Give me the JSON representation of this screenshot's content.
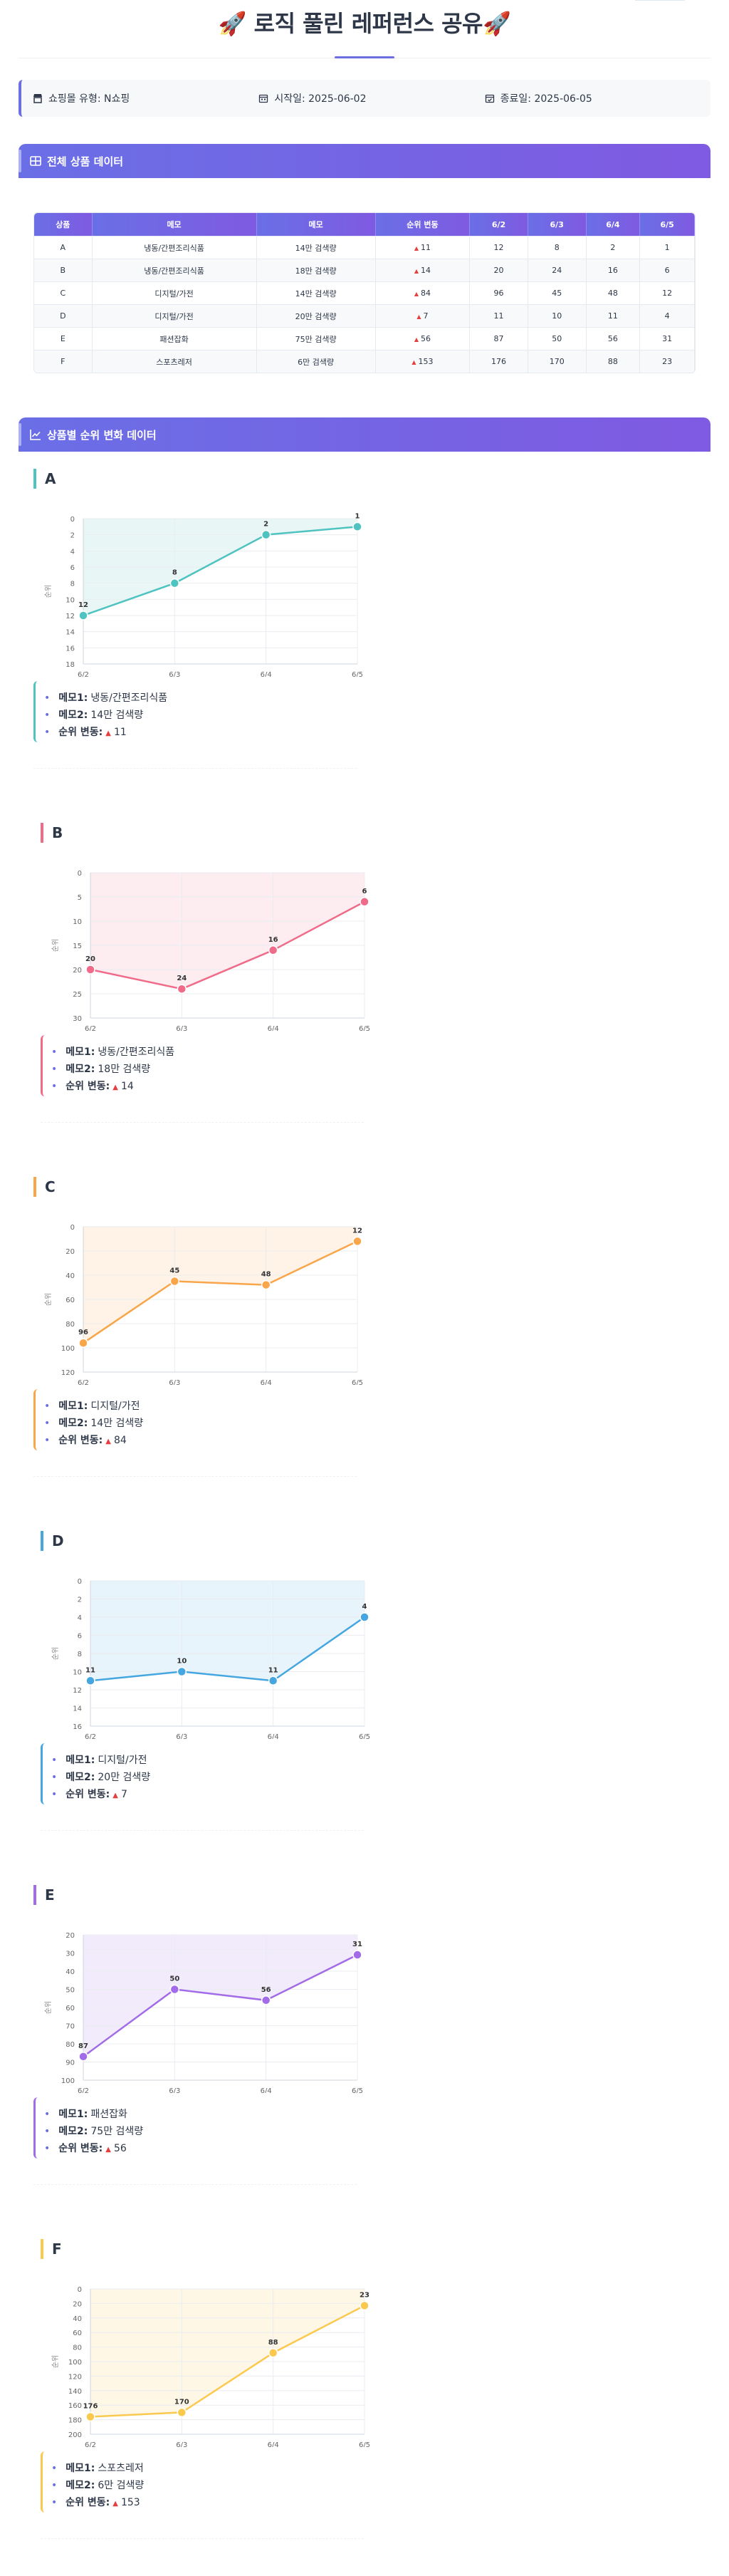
{
  "page_title": "🚀 로직 풀린 레퍼런스 공유🚀",
  "info": {
    "mall": "쇼핑몰 유형: N쇼핑",
    "start": "시작일: 2025-06-02",
    "end": "종료일: 2025-06-05"
  },
  "sections": {
    "table_title": "전체 상품 데이터",
    "charts_title": "상품별 순위 변화 데이터"
  },
  "table": {
    "headers": [
      "상품",
      "메모",
      "메모",
      "순위 변동",
      "6/2",
      "6/3",
      "6/4",
      "6/5"
    ],
    "rows": [
      {
        "product": "A",
        "memo1": "냉동/간편조리식품",
        "memo2": "14만 검색량",
        "change": "11",
        "r1": "12",
        "r2": "8",
        "r3": "2",
        "r4": "1"
      },
      {
        "product": "B",
        "memo1": "냉동/간편조리식품",
        "memo2": "18만 검색량",
        "change": "14",
        "r1": "20",
        "r2": "24",
        "r3": "16",
        "r4": "6"
      },
      {
        "product": "C",
        "memo1": "디지털/가전",
        "memo2": "14만 검색량",
        "change": "84",
        "r1": "96",
        "r2": "45",
        "r3": "48",
        "r4": "12"
      },
      {
        "product": "D",
        "memo1": "디지털/가전",
        "memo2": "20만 검색량",
        "change": "7",
        "r1": "11",
        "r2": "10",
        "r3": "11",
        "r4": "4"
      },
      {
        "product": "E",
        "memo1": "패션잡화",
        "memo2": "75만 검색량",
        "change": "56",
        "r1": "87",
        "r2": "50",
        "r3": "56",
        "r4": "31"
      },
      {
        "product": "F",
        "memo1": "스포츠레저",
        "memo2": "6만 검색량",
        "change": "153",
        "r1": "176",
        "r2": "170",
        "r3": "88",
        "r4": "23"
      }
    ]
  },
  "labels": {
    "memo1": "메모1:",
    "memo2": "메모2:",
    "change": "순위 변동:",
    "ylabel": "순위",
    "up_symbol": "▲"
  },
  "chart_data": [
    {
      "type": "line",
      "title": "A",
      "categories": [
        "6/2",
        "6/3",
        "6/4",
        "6/5"
      ],
      "values": [
        12,
        8,
        2,
        1
      ],
      "ylim": [
        0,
        18
      ],
      "yticks": [
        0,
        2,
        4,
        6,
        8,
        10,
        12,
        14,
        16,
        18
      ],
      "inverted_y": true,
      "ylabel": "순위",
      "color": "#4fc3c0",
      "fill": "#e8f7f6",
      "memo1": "냉동/간편조리식품",
      "memo2": "14만 검색량",
      "change": "11"
    },
    {
      "type": "line",
      "title": "B",
      "categories": [
        "6/2",
        "6/3",
        "6/4",
        "6/5"
      ],
      "values": [
        20,
        24,
        16,
        6
      ],
      "ylim": [
        0,
        30
      ],
      "yticks": [
        0,
        5,
        10,
        15,
        20,
        25,
        30
      ],
      "inverted_y": true,
      "ylabel": "순위",
      "color": "#f06b8a",
      "fill": "#fdecf0",
      "memo1": "냉동/간편조리식품",
      "memo2": "18만 검색량",
      "change": "14"
    },
    {
      "type": "line",
      "title": "C",
      "categories": [
        "6/2",
        "6/3",
        "6/4",
        "6/5"
      ],
      "values": [
        96,
        45,
        48,
        12
      ],
      "ylim": [
        0,
        120
      ],
      "yticks": [
        0,
        20,
        40,
        60,
        80,
        100,
        120
      ],
      "inverted_y": true,
      "ylabel": "순위",
      "color": "#f9a54a",
      "fill": "#fef3e6",
      "memo1": "디지털/가전",
      "memo2": "14만 검색량",
      "change": "84"
    },
    {
      "type": "line",
      "title": "D",
      "categories": [
        "6/2",
        "6/3",
        "6/4",
        "6/5"
      ],
      "values": [
        11,
        10,
        11,
        4
      ],
      "ylim": [
        0,
        16
      ],
      "yticks": [
        0,
        2,
        4,
        6,
        8,
        10,
        12,
        14,
        16
      ],
      "inverted_y": true,
      "ylabel": "순위",
      "color": "#45a6e0",
      "fill": "#e8f4fb",
      "memo1": "디지털/가전",
      "memo2": "20만 검색량",
      "change": "7"
    },
    {
      "type": "line",
      "title": "E",
      "categories": [
        "6/2",
        "6/3",
        "6/4",
        "6/5"
      ],
      "values": [
        87,
        50,
        56,
        31
      ],
      "ylim": [
        20,
        100
      ],
      "yticks": [
        20,
        30,
        40,
        50,
        60,
        70,
        80,
        90,
        100
      ],
      "inverted_y": true,
      "ylabel": "순위",
      "color": "#a26ce8",
      "fill": "#f2ebfc",
      "memo1": "패션잡화",
      "memo2": "75만 검색량",
      "change": "56"
    },
    {
      "type": "line",
      "title": "F",
      "categories": [
        "6/2",
        "6/3",
        "6/4",
        "6/5"
      ],
      "values": [
        176,
        170,
        88,
        23
      ],
      "ylim": [
        0,
        200
      ],
      "yticks": [
        0,
        20,
        40,
        60,
        80,
        100,
        120,
        140,
        160,
        180,
        200
      ],
      "inverted_y": true,
      "ylabel": "순위",
      "color": "#fcc94f",
      "fill": "#fef7e6",
      "memo1": "스포츠레저",
      "memo2": "6만 검색량",
      "change": "153"
    }
  ]
}
